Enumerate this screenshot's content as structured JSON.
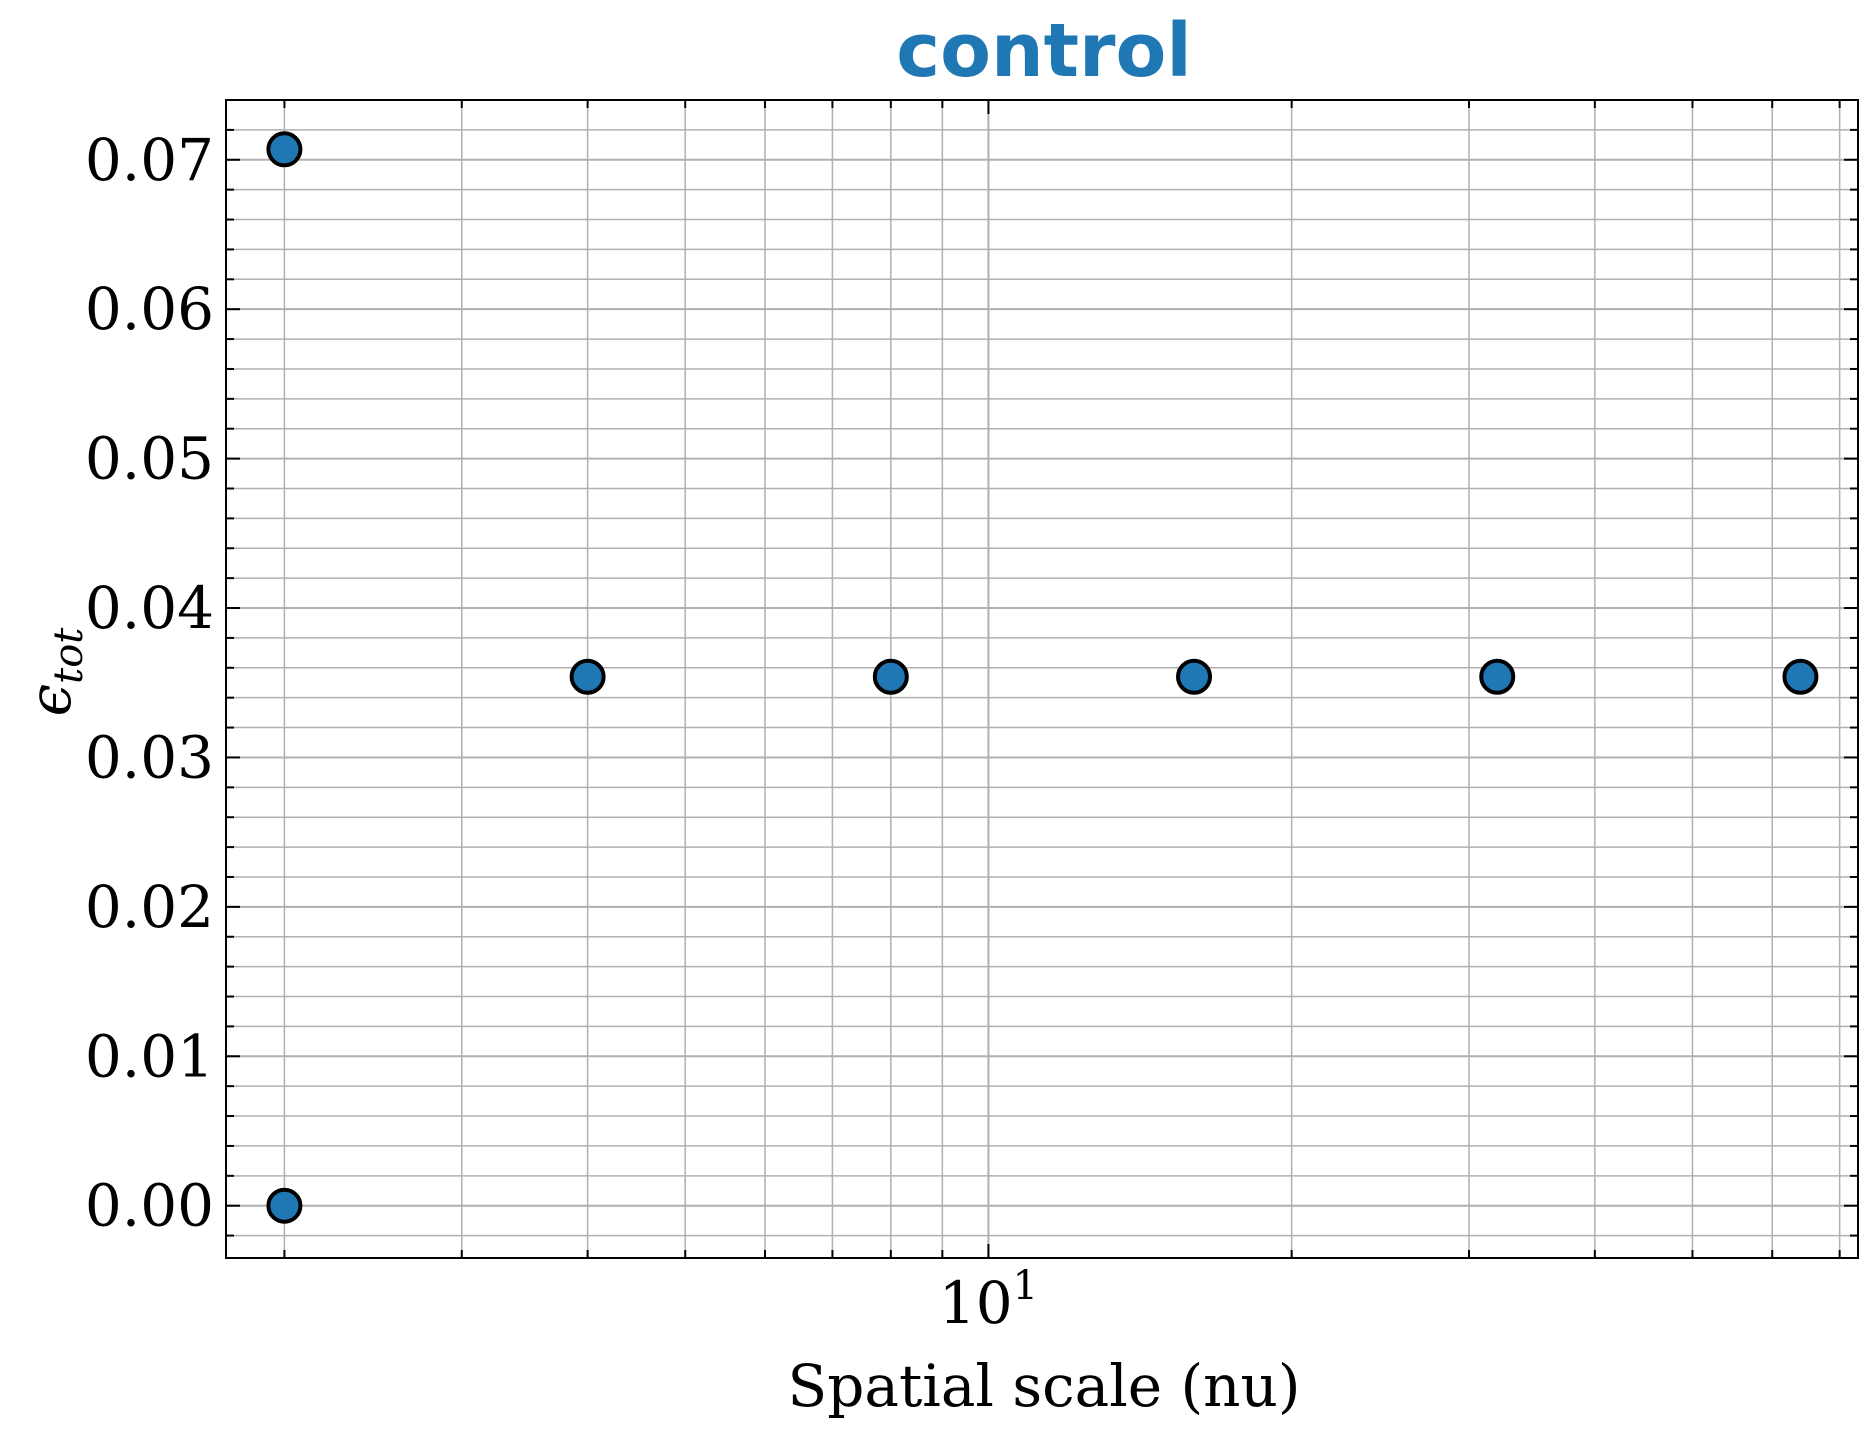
{
  "chart_data": {
    "type": "scatter",
    "title": "control",
    "xlabel": "Spatial scale (nu)",
    "ylabel": "ϵ",
    "ylabel_sub": "tot",
    "x_scale": "log",
    "xlim": [
      1.75,
      73
    ],
    "ylim": [
      -0.0035,
      0.074
    ],
    "x_ticks": [
      {
        "value": 10,
        "base": "10",
        "exp": "1"
      }
    ],
    "y_ticks": [
      {
        "value": 0.0,
        "label": "0.00"
      },
      {
        "value": 0.01,
        "label": "0.01"
      },
      {
        "value": 0.02,
        "label": "0.02"
      },
      {
        "value": 0.03,
        "label": "0.03"
      },
      {
        "value": 0.04,
        "label": "0.04"
      },
      {
        "value": 0.05,
        "label": "0.05"
      },
      {
        "value": 0.06,
        "label": "0.06"
      },
      {
        "value": 0.07,
        "label": "0.07"
      }
    ],
    "grid": true,
    "series": [
      {
        "points": [
          {
            "x": 2,
            "y": 0.0707
          },
          {
            "x": 2,
            "y": 0.0
          },
          {
            "x": 4,
            "y": 0.0354
          },
          {
            "x": 8,
            "y": 0.0354
          },
          {
            "x": 16,
            "y": 0.0354
          },
          {
            "x": 32,
            "y": 0.0354
          },
          {
            "x": 64,
            "y": 0.0354
          }
        ]
      }
    ],
    "colors": {
      "marker": "#1f77b4",
      "marker_edge": "#000000",
      "title": "#1f77b4",
      "grid": "#b0b0b0"
    }
  }
}
